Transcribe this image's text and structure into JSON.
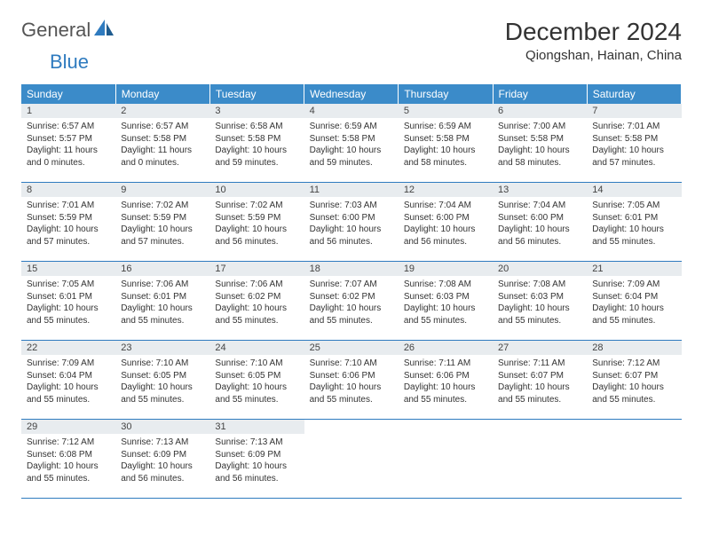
{
  "logo": {
    "general": "General",
    "blue": "Blue"
  },
  "title": "December 2024",
  "location": "Qiongshan, Hainan, China",
  "colors": {
    "header_bg": "#3b8bc9",
    "header_text": "#ffffff",
    "daynum_bg": "#e8ecef",
    "border": "#2f7bbf",
    "logo_blue": "#2f7bbf",
    "logo_grey": "#555555"
  },
  "weekdays": [
    "Sunday",
    "Monday",
    "Tuesday",
    "Wednesday",
    "Thursday",
    "Friday",
    "Saturday"
  ],
  "weeks": [
    [
      {
        "n": "1",
        "sr": "6:57 AM",
        "ss": "5:57 PM",
        "dl": "11 hours and 0 minutes."
      },
      {
        "n": "2",
        "sr": "6:57 AM",
        "ss": "5:58 PM",
        "dl": "11 hours and 0 minutes."
      },
      {
        "n": "3",
        "sr": "6:58 AM",
        "ss": "5:58 PM",
        "dl": "10 hours and 59 minutes."
      },
      {
        "n": "4",
        "sr": "6:59 AM",
        "ss": "5:58 PM",
        "dl": "10 hours and 59 minutes."
      },
      {
        "n": "5",
        "sr": "6:59 AM",
        "ss": "5:58 PM",
        "dl": "10 hours and 58 minutes."
      },
      {
        "n": "6",
        "sr": "7:00 AM",
        "ss": "5:58 PM",
        "dl": "10 hours and 58 minutes."
      },
      {
        "n": "7",
        "sr": "7:01 AM",
        "ss": "5:58 PM",
        "dl": "10 hours and 57 minutes."
      }
    ],
    [
      {
        "n": "8",
        "sr": "7:01 AM",
        "ss": "5:59 PM",
        "dl": "10 hours and 57 minutes."
      },
      {
        "n": "9",
        "sr": "7:02 AM",
        "ss": "5:59 PM",
        "dl": "10 hours and 57 minutes."
      },
      {
        "n": "10",
        "sr": "7:02 AM",
        "ss": "5:59 PM",
        "dl": "10 hours and 56 minutes."
      },
      {
        "n": "11",
        "sr": "7:03 AM",
        "ss": "6:00 PM",
        "dl": "10 hours and 56 minutes."
      },
      {
        "n": "12",
        "sr": "7:04 AM",
        "ss": "6:00 PM",
        "dl": "10 hours and 56 minutes."
      },
      {
        "n": "13",
        "sr": "7:04 AM",
        "ss": "6:00 PM",
        "dl": "10 hours and 56 minutes."
      },
      {
        "n": "14",
        "sr": "7:05 AM",
        "ss": "6:01 PM",
        "dl": "10 hours and 55 minutes."
      }
    ],
    [
      {
        "n": "15",
        "sr": "7:05 AM",
        "ss": "6:01 PM",
        "dl": "10 hours and 55 minutes."
      },
      {
        "n": "16",
        "sr": "7:06 AM",
        "ss": "6:01 PM",
        "dl": "10 hours and 55 minutes."
      },
      {
        "n": "17",
        "sr": "7:06 AM",
        "ss": "6:02 PM",
        "dl": "10 hours and 55 minutes."
      },
      {
        "n": "18",
        "sr": "7:07 AM",
        "ss": "6:02 PM",
        "dl": "10 hours and 55 minutes."
      },
      {
        "n": "19",
        "sr": "7:08 AM",
        "ss": "6:03 PM",
        "dl": "10 hours and 55 minutes."
      },
      {
        "n": "20",
        "sr": "7:08 AM",
        "ss": "6:03 PM",
        "dl": "10 hours and 55 minutes."
      },
      {
        "n": "21",
        "sr": "7:09 AM",
        "ss": "6:04 PM",
        "dl": "10 hours and 55 minutes."
      }
    ],
    [
      {
        "n": "22",
        "sr": "7:09 AM",
        "ss": "6:04 PM",
        "dl": "10 hours and 55 minutes."
      },
      {
        "n": "23",
        "sr": "7:10 AM",
        "ss": "6:05 PM",
        "dl": "10 hours and 55 minutes."
      },
      {
        "n": "24",
        "sr": "7:10 AM",
        "ss": "6:05 PM",
        "dl": "10 hours and 55 minutes."
      },
      {
        "n": "25",
        "sr": "7:10 AM",
        "ss": "6:06 PM",
        "dl": "10 hours and 55 minutes."
      },
      {
        "n": "26",
        "sr": "7:11 AM",
        "ss": "6:06 PM",
        "dl": "10 hours and 55 minutes."
      },
      {
        "n": "27",
        "sr": "7:11 AM",
        "ss": "6:07 PM",
        "dl": "10 hours and 55 minutes."
      },
      {
        "n": "28",
        "sr": "7:12 AM",
        "ss": "6:07 PM",
        "dl": "10 hours and 55 minutes."
      }
    ],
    [
      {
        "n": "29",
        "sr": "7:12 AM",
        "ss": "6:08 PM",
        "dl": "10 hours and 55 minutes."
      },
      {
        "n": "30",
        "sr": "7:13 AM",
        "ss": "6:09 PM",
        "dl": "10 hours and 56 minutes."
      },
      {
        "n": "31",
        "sr": "7:13 AM",
        "ss": "6:09 PM",
        "dl": "10 hours and 56 minutes."
      },
      null,
      null,
      null,
      null
    ]
  ],
  "labels": {
    "sunrise": "Sunrise:",
    "sunset": "Sunset:",
    "daylight": "Daylight:"
  }
}
